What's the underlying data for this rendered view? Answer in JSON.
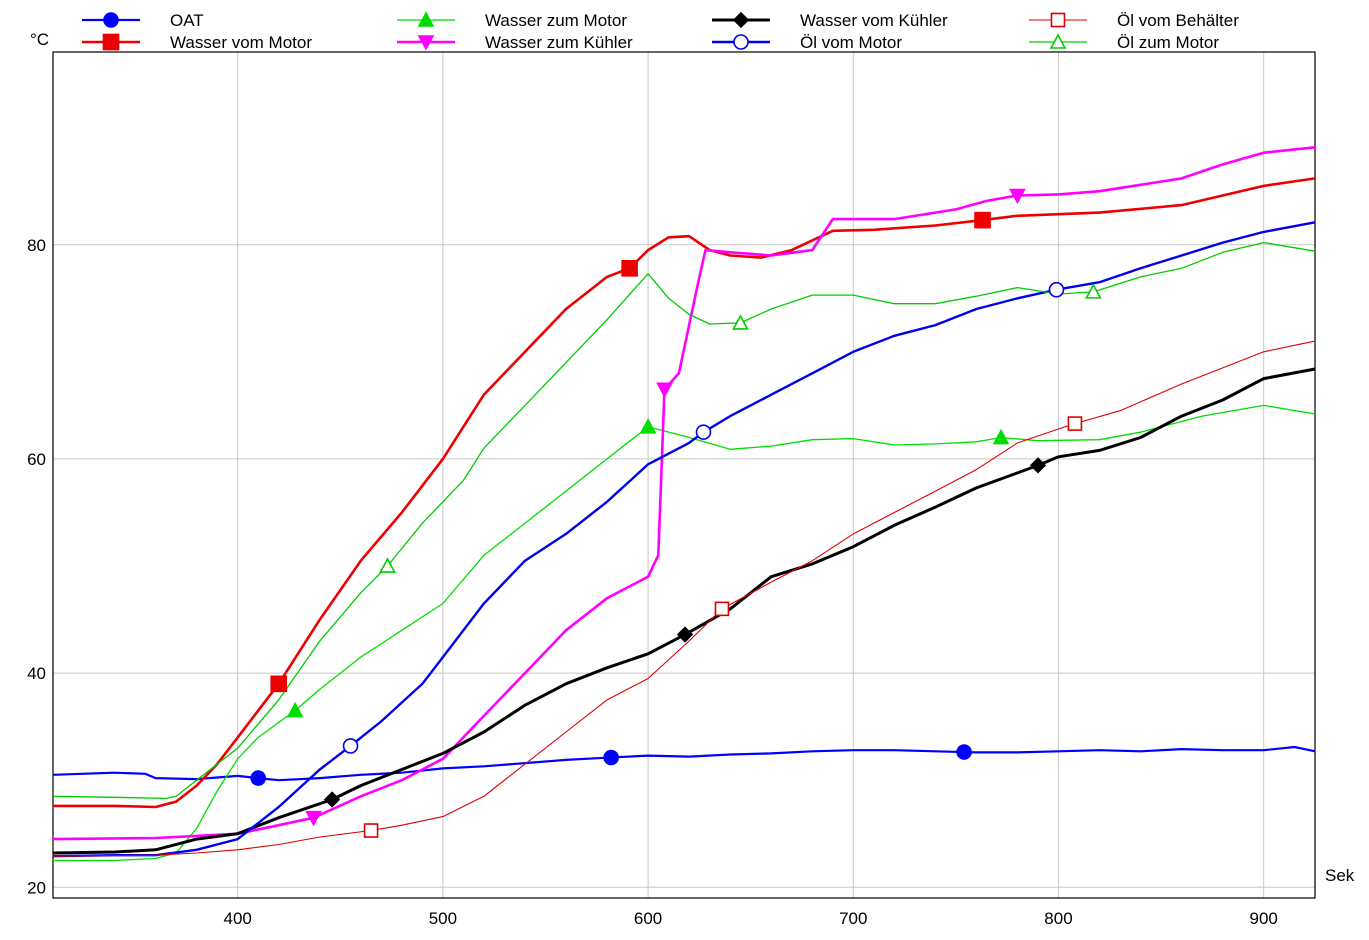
{
  "chart_data": {
    "type": "line",
    "title": "",
    "xlabel": "Sek",
    "ylabel": "°C",
    "xlim": [
      310,
      925
    ],
    "ylim": [
      19,
      98
    ],
    "xticks": [
      400,
      500,
      600,
      700,
      800,
      900
    ],
    "yticks": [
      20,
      40,
      60,
      80
    ],
    "grid": true,
    "legend_position": "top",
    "series": [
      {
        "name": "OAT",
        "color": "#0000ff",
        "width": 2.2,
        "marker": "circle",
        "filled": true,
        "marker_x": [
          410,
          582,
          754
        ],
        "points": [
          [
            310,
            30.5
          ],
          [
            340,
            30.7
          ],
          [
            355,
            30.6
          ],
          [
            360,
            30.2
          ],
          [
            380,
            30.1
          ],
          [
            400,
            30.4
          ],
          [
            410,
            30.2
          ],
          [
            420,
            30.0
          ],
          [
            440,
            30.2
          ],
          [
            460,
            30.5
          ],
          [
            480,
            30.7
          ],
          [
            500,
            31.1
          ],
          [
            520,
            31.3
          ],
          [
            540,
            31.6
          ],
          [
            560,
            31.9
          ],
          [
            580,
            32.1
          ],
          [
            600,
            32.3
          ],
          [
            620,
            32.2
          ],
          [
            640,
            32.4
          ],
          [
            660,
            32.5
          ],
          [
            680,
            32.7
          ],
          [
            700,
            32.8
          ],
          [
            720,
            32.8
          ],
          [
            740,
            32.7
          ],
          [
            760,
            32.6
          ],
          [
            780,
            32.6
          ],
          [
            800,
            32.7
          ],
          [
            820,
            32.8
          ],
          [
            840,
            32.7
          ],
          [
            860,
            32.9
          ],
          [
            880,
            32.8
          ],
          [
            900,
            32.8
          ],
          [
            915,
            33.1
          ],
          [
            925,
            32.7
          ]
        ]
      },
      {
        "name": "Wasser vom Motor",
        "color": "#ee0000",
        "width": 2.6,
        "marker": "square",
        "filled": true,
        "marker_x": [
          420,
          591,
          763
        ],
        "points": [
          [
            310,
            27.6
          ],
          [
            340,
            27.6
          ],
          [
            360,
            27.5
          ],
          [
            370,
            28.0
          ],
          [
            380,
            29.5
          ],
          [
            390,
            31.5
          ],
          [
            400,
            34.0
          ],
          [
            410,
            36.5
          ],
          [
            420,
            39.0
          ],
          [
            440,
            45.0
          ],
          [
            460,
            50.5
          ],
          [
            480,
            55.0
          ],
          [
            500,
            60.0
          ],
          [
            520,
            66.0
          ],
          [
            540,
            70.0
          ],
          [
            560,
            74.0
          ],
          [
            580,
            77.0
          ],
          [
            591,
            77.8
          ],
          [
            600,
            79.5
          ],
          [
            610,
            80.7
          ],
          [
            620,
            80.8
          ],
          [
            630,
            79.5
          ],
          [
            640,
            79.0
          ],
          [
            655,
            78.8
          ],
          [
            670,
            79.5
          ],
          [
            690,
            81.3
          ],
          [
            710,
            81.4
          ],
          [
            740,
            81.8
          ],
          [
            763,
            82.3
          ],
          [
            780,
            82.7
          ],
          [
            820,
            83.0
          ],
          [
            860,
            83.7
          ],
          [
            900,
            85.5
          ],
          [
            925,
            86.2
          ]
        ]
      },
      {
        "name": "Wasser zum Motor",
        "color": "#00dd00",
        "width": 1.3,
        "marker": "triangle-up",
        "filled": true,
        "marker_x": [
          428,
          600,
          772
        ],
        "points": [
          [
            310,
            22.5
          ],
          [
            340,
            22.5
          ],
          [
            360,
            22.7
          ],
          [
            370,
            23.2
          ],
          [
            380,
            25.5
          ],
          [
            390,
            29.0
          ],
          [
            400,
            32.0
          ],
          [
            410,
            34.0
          ],
          [
            428,
            36.5
          ],
          [
            440,
            38.5
          ],
          [
            460,
            41.5
          ],
          [
            480,
            44.0
          ],
          [
            500,
            46.5
          ],
          [
            520,
            51.0
          ],
          [
            540,
            54.0
          ],
          [
            560,
            57.0
          ],
          [
            580,
            60.0
          ],
          [
            600,
            63.0
          ],
          [
            620,
            62.0
          ],
          [
            640,
            60.9
          ],
          [
            660,
            61.2
          ],
          [
            680,
            61.8
          ],
          [
            700,
            61.9
          ],
          [
            720,
            61.3
          ],
          [
            740,
            61.4
          ],
          [
            760,
            61.6
          ],
          [
            772,
            62.0
          ],
          [
            790,
            61.7
          ],
          [
            820,
            61.8
          ],
          [
            840,
            62.5
          ],
          [
            870,
            64.0
          ],
          [
            900,
            65.0
          ],
          [
            925,
            64.2
          ]
        ]
      },
      {
        "name": "Wasser zum Kühler",
        "color": "#ff00ff",
        "width": 2.6,
        "marker": "triangle-down",
        "filled": true,
        "marker_x": [
          437,
          608,
          780
        ],
        "points": [
          [
            310,
            24.5
          ],
          [
            360,
            24.6
          ],
          [
            380,
            24.8
          ],
          [
            400,
            25.0
          ],
          [
            420,
            25.8
          ],
          [
            437,
            26.5
          ],
          [
            460,
            28.5
          ],
          [
            480,
            30.0
          ],
          [
            500,
            32.0
          ],
          [
            520,
            36.0
          ],
          [
            540,
            40.0
          ],
          [
            560,
            44.0
          ],
          [
            580,
            47.0
          ],
          [
            600,
            49.0
          ],
          [
            605,
            51.0
          ],
          [
            608,
            66.5
          ],
          [
            615,
            68.0
          ],
          [
            620,
            72.5
          ],
          [
            625,
            77.0
          ],
          [
            628,
            79.5
          ],
          [
            640,
            79.3
          ],
          [
            660,
            79.0
          ],
          [
            680,
            79.5
          ],
          [
            690,
            82.4
          ],
          [
            720,
            82.4
          ],
          [
            750,
            83.3
          ],
          [
            765,
            84.1
          ],
          [
            780,
            84.6
          ],
          [
            800,
            84.7
          ],
          [
            820,
            85.0
          ],
          [
            840,
            85.6
          ],
          [
            860,
            86.2
          ],
          [
            880,
            87.5
          ],
          [
            900,
            88.6
          ],
          [
            925,
            89.1
          ]
        ]
      },
      {
        "name": "Wasser vom Kühler",
        "color": "#000000",
        "width": 3.0,
        "marker": "diamond",
        "filled": true,
        "marker_x": [
          446,
          618,
          790
        ],
        "points": [
          [
            310,
            23.2
          ],
          [
            340,
            23.3
          ],
          [
            360,
            23.5
          ],
          [
            380,
            24.5
          ],
          [
            400,
            25.0
          ],
          [
            420,
            26.5
          ],
          [
            446,
            28.2
          ],
          [
            460,
            29.5
          ],
          [
            480,
            31.0
          ],
          [
            500,
            32.5
          ],
          [
            520,
            34.5
          ],
          [
            540,
            37.0
          ],
          [
            560,
            39.0
          ],
          [
            580,
            40.5
          ],
          [
            600,
            41.8
          ],
          [
            618,
            43.6
          ],
          [
            640,
            46.0
          ],
          [
            660,
            49.0
          ],
          [
            680,
            50.2
          ],
          [
            700,
            51.8
          ],
          [
            720,
            53.8
          ],
          [
            740,
            55.5
          ],
          [
            760,
            57.3
          ],
          [
            780,
            58.7
          ],
          [
            790,
            59.4
          ],
          [
            800,
            60.2
          ],
          [
            820,
            60.8
          ],
          [
            840,
            62.0
          ],
          [
            860,
            64.0
          ],
          [
            880,
            65.5
          ],
          [
            900,
            67.5
          ],
          [
            925,
            68.4
          ]
        ]
      },
      {
        "name": "Öl vom Motor",
        "color": "#0000ee",
        "width": 2.4,
        "marker": "circle",
        "filled": false,
        "marker_x": [
          455,
          627,
          799
        ],
        "points": [
          [
            310,
            22.9
          ],
          [
            340,
            23.0
          ],
          [
            360,
            23.0
          ],
          [
            380,
            23.5
          ],
          [
            400,
            24.5
          ],
          [
            420,
            27.5
          ],
          [
            440,
            31.0
          ],
          [
            455,
            33.2
          ],
          [
            470,
            35.5
          ],
          [
            490,
            39.0
          ],
          [
            500,
            41.5
          ],
          [
            520,
            46.5
          ],
          [
            540,
            50.5
          ],
          [
            560,
            53.0
          ],
          [
            580,
            56.0
          ],
          [
            600,
            59.5
          ],
          [
            620,
            61.5
          ],
          [
            627,
            62.5
          ],
          [
            640,
            64.0
          ],
          [
            660,
            66.0
          ],
          [
            680,
            68.0
          ],
          [
            700,
            70.0
          ],
          [
            720,
            71.5
          ],
          [
            740,
            72.5
          ],
          [
            760,
            74.0
          ],
          [
            780,
            75.0
          ],
          [
            799,
            75.8
          ],
          [
            820,
            76.5
          ],
          [
            840,
            77.8
          ],
          [
            860,
            79.0
          ],
          [
            880,
            80.2
          ],
          [
            900,
            81.2
          ],
          [
            925,
            82.1
          ]
        ]
      },
      {
        "name": "Öl vom Behälter",
        "color": "#dd0000",
        "width": 1.1,
        "marker": "square",
        "filled": false,
        "marker_x": [
          465,
          636,
          808
        ],
        "points": [
          [
            310,
            22.9
          ],
          [
            360,
            23.0
          ],
          [
            380,
            23.2
          ],
          [
            400,
            23.5
          ],
          [
            420,
            24.0
          ],
          [
            440,
            24.7
          ],
          [
            465,
            25.3
          ],
          [
            480,
            25.8
          ],
          [
            500,
            26.6
          ],
          [
            520,
            28.5
          ],
          [
            540,
            31.5
          ],
          [
            560,
            34.5
          ],
          [
            580,
            37.5
          ],
          [
            600,
            39.5
          ],
          [
            620,
            43.0
          ],
          [
            636,
            46.0
          ],
          [
            660,
            48.5
          ],
          [
            680,
            50.5
          ],
          [
            700,
            53.0
          ],
          [
            720,
            55.0
          ],
          [
            740,
            57.0
          ],
          [
            760,
            59.0
          ],
          [
            780,
            61.5
          ],
          [
            800,
            62.8
          ],
          [
            808,
            63.3
          ],
          [
            830,
            64.5
          ],
          [
            860,
            67.0
          ],
          [
            880,
            68.5
          ],
          [
            900,
            70.0
          ],
          [
            925,
            71.0
          ]
        ]
      },
      {
        "name": "Öl zum Motor",
        "color": "#00cc00",
        "width": 1.3,
        "marker": "triangle-up",
        "filled": false,
        "marker_x": [
          473,
          645,
          817
        ],
        "points": [
          [
            310,
            28.5
          ],
          [
            340,
            28.4
          ],
          [
            365,
            28.3
          ],
          [
            370,
            28.5
          ],
          [
            380,
            30.0
          ],
          [
            400,
            33.0
          ],
          [
            420,
            37.5
          ],
          [
            440,
            43.0
          ],
          [
            460,
            47.5
          ],
          [
            473,
            50.0
          ],
          [
            490,
            54.0
          ],
          [
            510,
            58.0
          ],
          [
            520,
            61.0
          ],
          [
            540,
            65.0
          ],
          [
            560,
            69.0
          ],
          [
            580,
            73.0
          ],
          [
            600,
            77.3
          ],
          [
            610,
            75.0
          ],
          [
            620,
            73.5
          ],
          [
            630,
            72.6
          ],
          [
            645,
            72.7
          ],
          [
            660,
            74.0
          ],
          [
            680,
            75.3
          ],
          [
            700,
            75.3
          ],
          [
            720,
            74.5
          ],
          [
            740,
            74.5
          ],
          [
            760,
            75.2
          ],
          [
            780,
            76.0
          ],
          [
            800,
            75.4
          ],
          [
            817,
            75.6
          ],
          [
            840,
            77.0
          ],
          [
            860,
            77.8
          ],
          [
            880,
            79.3
          ],
          [
            900,
            80.2
          ],
          [
            925,
            79.4
          ]
        ]
      }
    ]
  }
}
